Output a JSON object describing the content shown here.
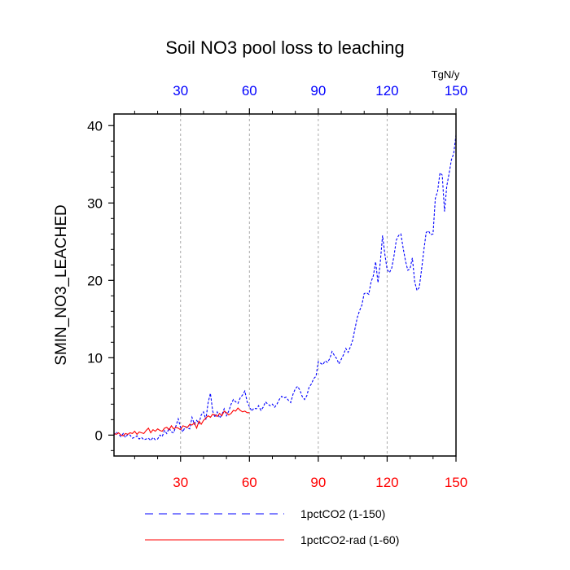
{
  "chart_data": {
    "type": "line",
    "title": "Soil NO3 pool loss to leaching",
    "ylabel": "SMIN_NO3_LEACHED",
    "xlabel": "",
    "top_axis_unit": "TgN/y",
    "xlim": [
      1,
      150
    ],
    "ylim": [
      -2.7,
      41.5
    ],
    "x_ticks": [
      30,
      60,
      90,
      120,
      150
    ],
    "x_tick_labels": [
      "30",
      "60",
      "90",
      "120",
      "150"
    ],
    "y_ticks": [
      0,
      10,
      20,
      30,
      40
    ],
    "y_tick_labels": [
      "0",
      "10",
      "20",
      "30",
      "40"
    ],
    "grid": "vertical dashed at x ticks",
    "bottom_tick_color": "#ff0000",
    "top_tick_color": "#0000ff",
    "legend_position": "bottom",
    "series": [
      {
        "name": "1pctCO2 (1-150)",
        "color": "#0000ff",
        "style": "dashed",
        "x_range": [
          1,
          150
        ],
        "x": [
          1,
          2,
          3,
          4,
          5,
          6,
          7,
          8,
          9,
          10,
          11,
          12,
          13,
          14,
          15,
          16,
          17,
          18,
          19,
          20,
          21,
          22,
          23,
          24,
          25,
          26,
          27,
          28,
          29,
          30,
          31,
          32,
          33,
          34,
          35,
          36,
          37,
          38,
          39,
          40,
          41,
          42,
          43,
          44,
          45,
          46,
          47,
          48,
          49,
          50,
          51,
          52,
          53,
          54,
          55,
          56,
          57,
          58,
          59,
          60,
          61,
          62,
          63,
          64,
          65,
          66,
          67,
          68,
          69,
          70,
          71,
          72,
          73,
          74,
          75,
          76,
          77,
          78,
          79,
          80,
          81,
          82,
          83,
          84,
          85,
          86,
          87,
          88,
          89,
          90,
          91,
          92,
          93,
          94,
          95,
          96,
          97,
          98,
          99,
          100,
          101,
          102,
          103,
          104,
          105,
          106,
          107,
          108,
          109,
          110,
          111,
          112,
          113,
          114,
          115,
          116,
          117,
          118,
          119,
          120,
          121,
          122,
          123,
          124,
          125,
          126,
          127,
          128,
          129,
          130,
          131,
          132,
          133,
          134,
          135,
          136,
          137,
          138,
          139,
          140,
          141,
          142,
          143,
          144,
          145,
          146,
          147,
          148,
          149,
          150
        ],
        "values": [
          0.0,
          0.4,
          0.1,
          -0.2,
          0.2,
          -0.3,
          0.1,
          0.0,
          -0.4,
          -0.3,
          -0.1,
          -0.5,
          -0.3,
          -0.6,
          -0.5,
          -0.4,
          -0.7,
          -0.3,
          -0.6,
          -0.5,
          0.0,
          -0.2,
          0.6,
          0.2,
          0.9,
          0.4,
          0.3,
          1.2,
          2.1,
          1.0,
          0.4,
          1.1,
          0.9,
          0.8,
          2.3,
          1.4,
          1.9,
          1.5,
          2.6,
          3.0,
          2.0,
          4.2,
          5.4,
          3.1,
          2.3,
          3.0,
          2.2,
          2.6,
          3.4,
          2.5,
          3.1,
          4.0,
          4.6,
          4.3,
          4.1,
          4.8,
          5.2,
          5.7,
          4.3,
          3.7,
          3.1,
          3.5,
          3.4,
          3.8,
          3.2,
          3.6,
          4.3,
          4.0,
          3.8,
          4.0,
          3.6,
          4.0,
          4.6,
          5.0,
          4.8,
          4.9,
          4.5,
          4.2,
          5.3,
          6.0,
          6.3,
          5.8,
          5.0,
          4.6,
          5.1,
          6.2,
          6.6,
          7.3,
          7.6,
          9.5,
          9.3,
          9.1,
          9.6,
          9.4,
          9.9,
          10.8,
          10.3,
          9.9,
          9.2,
          9.8,
          10.4,
          11.2,
          10.7,
          11.4,
          12.3,
          13.8,
          15.2,
          16.1,
          16.8,
          18.3,
          18.4,
          18.2,
          19.8,
          20.6,
          22.4,
          19.7,
          22.3,
          25.8,
          23.4,
          21.4,
          21.0,
          21.6,
          23.2,
          25.2,
          25.8,
          26.0,
          24.1,
          22.5,
          21.3,
          21.5,
          22.9,
          19.8,
          18.7,
          19.1,
          21.4,
          23.9,
          26.2,
          26.4,
          25.9,
          26.0,
          30.6,
          31.5,
          33.9,
          33.6,
          28.9,
          32.2,
          33.8,
          35.6,
          36.4,
          38.8
        ]
      },
      {
        "name": "1pctCO2-rad (1-60)",
        "color": "#ff0000",
        "style": "solid",
        "x_range": [
          1,
          60
        ],
        "x": [
          1,
          2,
          3,
          4,
          5,
          6,
          7,
          8,
          9,
          10,
          11,
          12,
          13,
          14,
          15,
          16,
          17,
          18,
          19,
          20,
          21,
          22,
          23,
          24,
          25,
          26,
          27,
          28,
          29,
          30,
          31,
          32,
          33,
          34,
          35,
          36,
          37,
          38,
          39,
          40,
          41,
          42,
          43,
          44,
          45,
          46,
          47,
          48,
          49,
          50,
          51,
          52,
          53,
          54,
          55,
          56,
          57,
          58,
          59,
          60
        ],
        "values": [
          0.2,
          0.1,
          0.3,
          0.0,
          -0.1,
          0.2,
          0.1,
          0.3,
          0.2,
          0.5,
          0.1,
          0.4,
          0.3,
          0.2,
          0.6,
          0.9,
          0.3,
          0.7,
          0.5,
          0.8,
          0.6,
          0.5,
          0.9,
          1.0,
          0.7,
          1.2,
          0.8,
          1.0,
          0.9,
          0.7,
          1.2,
          1.1,
          1.0,
          1.4,
          1.3,
          1.6,
          0.9,
          1.8,
          1.4,
          1.9,
          2.2,
          2.5,
          2.3,
          2.7,
          2.6,
          2.4,
          2.8,
          2.5,
          3.1,
          2.9,
          2.6,
          2.8,
          3.2,
          3.1,
          3.5,
          3.2,
          3.0,
          3.1,
          2.9,
          2.9
        ]
      }
    ]
  }
}
